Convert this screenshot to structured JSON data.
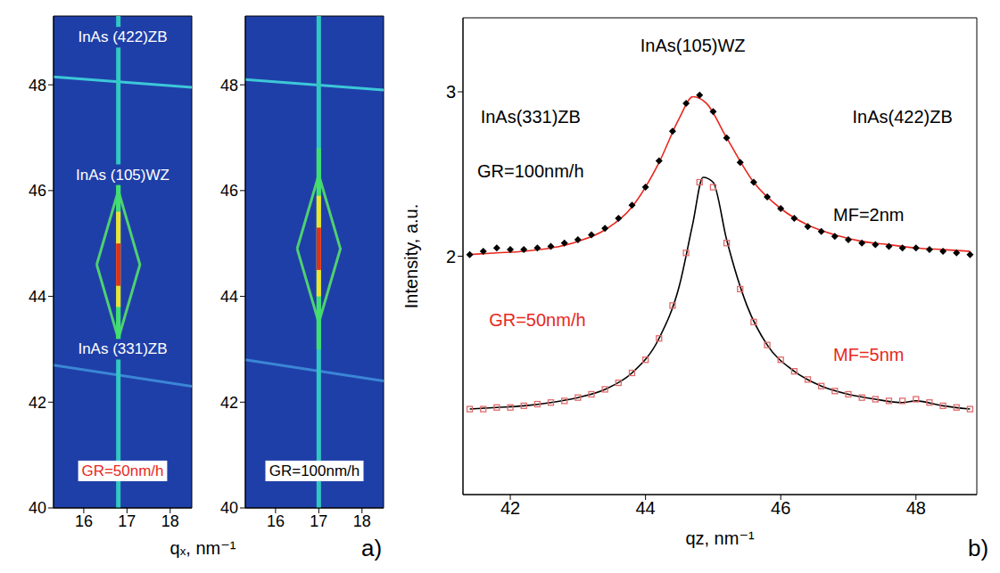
{
  "chart_data": [
    {
      "type": "map",
      "xlim": [
        15.3,
        18.5
      ],
      "xticks": [
        16,
        17,
        18
      ],
      "ylim": [
        40,
        49.3
      ],
      "yticks": [
        40,
        42,
        44,
        46,
        48
      ],
      "background": "#1f3fa8",
      "features": [
        {
          "color": "#3cc8d8",
          "x": [
            15.3,
            18.5
          ],
          "values": [
            48.15,
            47.95
          ]
        },
        {
          "color": "#3a86d6",
          "x": [
            15.3,
            18.5
          ],
          "values": [
            42.7,
            42.3
          ]
        },
        {
          "color": "#30c8c0",
          "x": [
            16.8,
            16.8
          ],
          "values": [
            40,
            49.3
          ]
        },
        {
          "color": "#50d070",
          "x": [
            16.3,
            16.8,
            17.3,
            16.8,
            16.3
          ],
          "values": [
            44.6,
            46.0,
            44.6,
            43.2,
            44.6
          ]
        },
        {
          "color": "#40e070",
          "x": [
            16.8,
            16.8
          ],
          "values": [
            42.8,
            46.4
          ]
        },
        {
          "color": "#f0e030",
          "x": [
            16.8,
            16.8
          ],
          "values": [
            43.8,
            45.6
          ]
        },
        {
          "color": "#e03020",
          "x": [
            16.8,
            16.8
          ],
          "values": [
            44.2,
            45.0
          ]
        }
      ],
      "annotations": [
        {
          "text": "InAs (422)ZB",
          "x": 16.9,
          "y": 48.9,
          "color": "#ffffff"
        },
        {
          "text": "InAs (105)WZ",
          "x": 16.9,
          "y": 46.3,
          "color": "#ffffff"
        },
        {
          "text": "InAs (331)ZB",
          "x": 16.9,
          "y": 43.0,
          "color": "#ffffff"
        },
        {
          "text": "GR=50nm/h",
          "x": 16.9,
          "y": 40.7,
          "color": "#e8281e"
        }
      ]
    },
    {
      "type": "map",
      "x_label": "qₓ, nm⁻¹",
      "panel_label": "a)",
      "xlim": [
        15.3,
        18.5
      ],
      "xticks": [
        16,
        17,
        18
      ],
      "ylim": [
        40,
        49.3
      ],
      "yticks": [
        40,
        42,
        44,
        46,
        48
      ],
      "background": "#1f3fa8",
      "features": [
        {
          "color": "#3cc8d8",
          "x": [
            15.3,
            18.5
          ],
          "values": [
            48.1,
            47.9
          ]
        },
        {
          "color": "#3a86d6",
          "x": [
            15.3,
            18.5
          ],
          "values": [
            42.8,
            42.4
          ]
        },
        {
          "color": "#30c8c0",
          "x": [
            17.0,
            17.0
          ],
          "values": [
            40,
            49.3
          ]
        },
        {
          "color": "#50d070",
          "x": [
            16.5,
            17.0,
            17.5,
            17.0,
            16.5
          ],
          "values": [
            44.9,
            46.3,
            44.9,
            43.5,
            44.9
          ]
        },
        {
          "color": "#40e070",
          "x": [
            17.0,
            17.0
          ],
          "values": [
            43.0,
            46.8
          ]
        },
        {
          "color": "#f0e030",
          "x": [
            17.0,
            17.0
          ],
          "values": [
            44.0,
            45.9
          ]
        },
        {
          "color": "#e03020",
          "x": [
            17.0,
            17.0
          ],
          "values": [
            44.5,
            45.3
          ]
        }
      ],
      "annotations": [
        {
          "text": "GR=100nm/h",
          "x": 16.9,
          "y": 40.7,
          "color": "#000000"
        }
      ]
    },
    {
      "type": "line",
      "x_label": "qz, nm⁻¹",
      "y_label": "Intensity, a.u.",
      "panel_label": "b)",
      "xlim": [
        41.3,
        48.9
      ],
      "xticks": [
        42,
        44,
        46,
        48
      ],
      "ylim": [
        0.55,
        3.45
      ],
      "yticks": [
        2,
        3
      ],
      "series": [
        {
          "type": "scatter",
          "marker": "diamond",
          "color": "#000000",
          "x": [
            41.4,
            41.6,
            41.8,
            42.0,
            42.2,
            42.4,
            42.6,
            42.8,
            43.0,
            43.2,
            43.4,
            43.6,
            43.8,
            44.0,
            44.2,
            44.4,
            44.6,
            44.8,
            45.0,
            45.2,
            45.4,
            45.6,
            45.8,
            46.0,
            46.2,
            46.4,
            46.6,
            46.8,
            47.0,
            47.2,
            47.4,
            47.6,
            47.8,
            48.0,
            48.2,
            48.4,
            48.6,
            48.8
          ],
          "values": [
            2.01,
            2.03,
            2.05,
            2.04,
            2.04,
            2.05,
            2.06,
            2.08,
            2.1,
            2.13,
            2.17,
            2.23,
            2.31,
            2.42,
            2.58,
            2.76,
            2.93,
            2.98,
            2.88,
            2.72,
            2.57,
            2.45,
            2.36,
            2.29,
            2.23,
            2.18,
            2.15,
            2.12,
            2.1,
            2.08,
            2.07,
            2.06,
            2.05,
            2.05,
            2.04,
            2.03,
            2.02,
            2.01
          ]
        },
        {
          "type": "line",
          "color": "#e8281e",
          "x": [
            41.4,
            41.8,
            42.2,
            42.6,
            43.0,
            43.4,
            43.8,
            44.2,
            44.5,
            44.7,
            44.9,
            45.2,
            45.6,
            46.0,
            46.4,
            46.8,
            47.2,
            47.6,
            48.0,
            48.4,
            48.8
          ],
          "values": [
            2.01,
            2.02,
            2.03,
            2.05,
            2.09,
            2.16,
            2.3,
            2.57,
            2.84,
            2.97,
            2.93,
            2.72,
            2.45,
            2.29,
            2.19,
            2.13,
            2.09,
            2.07,
            2.05,
            2.04,
            2.03
          ]
        },
        {
          "type": "scatter",
          "marker": "open_square",
          "color": "#e06a6a",
          "x": [
            41.4,
            41.6,
            41.8,
            42.0,
            42.2,
            42.4,
            42.6,
            42.8,
            43.0,
            43.2,
            43.4,
            43.6,
            43.8,
            44.0,
            44.2,
            44.4,
            44.6,
            44.8,
            45.0,
            45.2,
            45.4,
            45.6,
            45.8,
            46.0,
            46.2,
            46.4,
            46.6,
            46.8,
            47.0,
            47.2,
            47.4,
            47.6,
            47.8,
            48.0,
            48.2,
            48.4,
            48.6,
            48.8
          ],
          "values": [
            1.07,
            1.07,
            1.08,
            1.08,
            1.09,
            1.1,
            1.11,
            1.12,
            1.14,
            1.16,
            1.19,
            1.23,
            1.29,
            1.37,
            1.5,
            1.7,
            2.02,
            2.45,
            2.42,
            2.08,
            1.8,
            1.6,
            1.46,
            1.37,
            1.3,
            1.25,
            1.21,
            1.18,
            1.16,
            1.14,
            1.13,
            1.12,
            1.12,
            1.13,
            1.11,
            1.09,
            1.08,
            1.07
          ]
        },
        {
          "type": "line",
          "color": "#000000",
          "x": [
            41.4,
            41.8,
            42.2,
            42.6,
            43.0,
            43.4,
            43.8,
            44.2,
            44.5,
            44.7,
            44.85,
            45.0,
            45.2,
            45.5,
            45.8,
            46.2,
            46.6,
            47.0,
            47.4,
            47.8,
            48.0,
            48.4,
            48.8
          ],
          "values": [
            1.07,
            1.08,
            1.09,
            1.11,
            1.14,
            1.19,
            1.29,
            1.5,
            1.82,
            2.2,
            2.48,
            2.45,
            2.1,
            1.7,
            1.46,
            1.3,
            1.21,
            1.16,
            1.13,
            1.11,
            1.12,
            1.09,
            1.07
          ]
        }
      ],
      "annotations": [
        {
          "text": "InAs(105)WZ",
          "x": 44.7,
          "y": 3.28,
          "color": "#000000"
        },
        {
          "text": "InAs(331)ZB",
          "x": 42.3,
          "y": 2.85,
          "color": "#000000"
        },
        {
          "text": "InAs(422)ZB",
          "x": 47.8,
          "y": 2.85,
          "color": "#000000"
        },
        {
          "text": "GR=100nm/h",
          "x": 42.3,
          "y": 2.52,
          "color": "#000000"
        },
        {
          "text": "MF=2nm",
          "x": 47.3,
          "y": 2.25,
          "color": "#000000"
        },
        {
          "text": "GR=50nm/h",
          "x": 42.4,
          "y": 1.61,
          "color": "#e8281e"
        },
        {
          "text": "MF=5nm",
          "x": 47.3,
          "y": 1.4,
          "color": "#e8281e"
        }
      ]
    }
  ]
}
